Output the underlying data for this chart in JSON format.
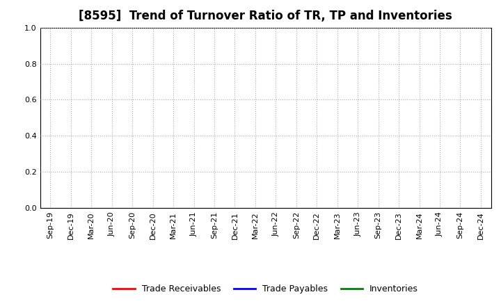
{
  "title": "[8595]  Trend of Turnover Ratio of TR, TP and Inventories",
  "xlabels": [
    "Sep-19",
    "Dec-19",
    "Mar-20",
    "Jun-20",
    "Sep-20",
    "Dec-20",
    "Mar-21",
    "Jun-21",
    "Sep-21",
    "Dec-21",
    "Mar-22",
    "Jun-22",
    "Sep-22",
    "Dec-22",
    "Mar-23",
    "Jun-23",
    "Sep-23",
    "Dec-23",
    "Mar-24",
    "Jun-24",
    "Sep-24",
    "Dec-24"
  ],
  "ylim": [
    0.0,
    1.0
  ],
  "yticks": [
    0.0,
    0.2,
    0.4,
    0.6,
    0.8,
    1.0
  ],
  "legend_entries": [
    {
      "label": "Trade Receivables",
      "color": "#FF0000"
    },
    {
      "label": "Trade Payables",
      "color": "#0000FF"
    },
    {
      "label": "Inventories",
      "color": "#008000"
    }
  ],
  "background_color": "#FFFFFF",
  "grid_color": "#AAAAAA",
  "title_fontsize": 12,
  "axis_fontsize": 8,
  "legend_fontsize": 9,
  "tick_fontsize": 8
}
